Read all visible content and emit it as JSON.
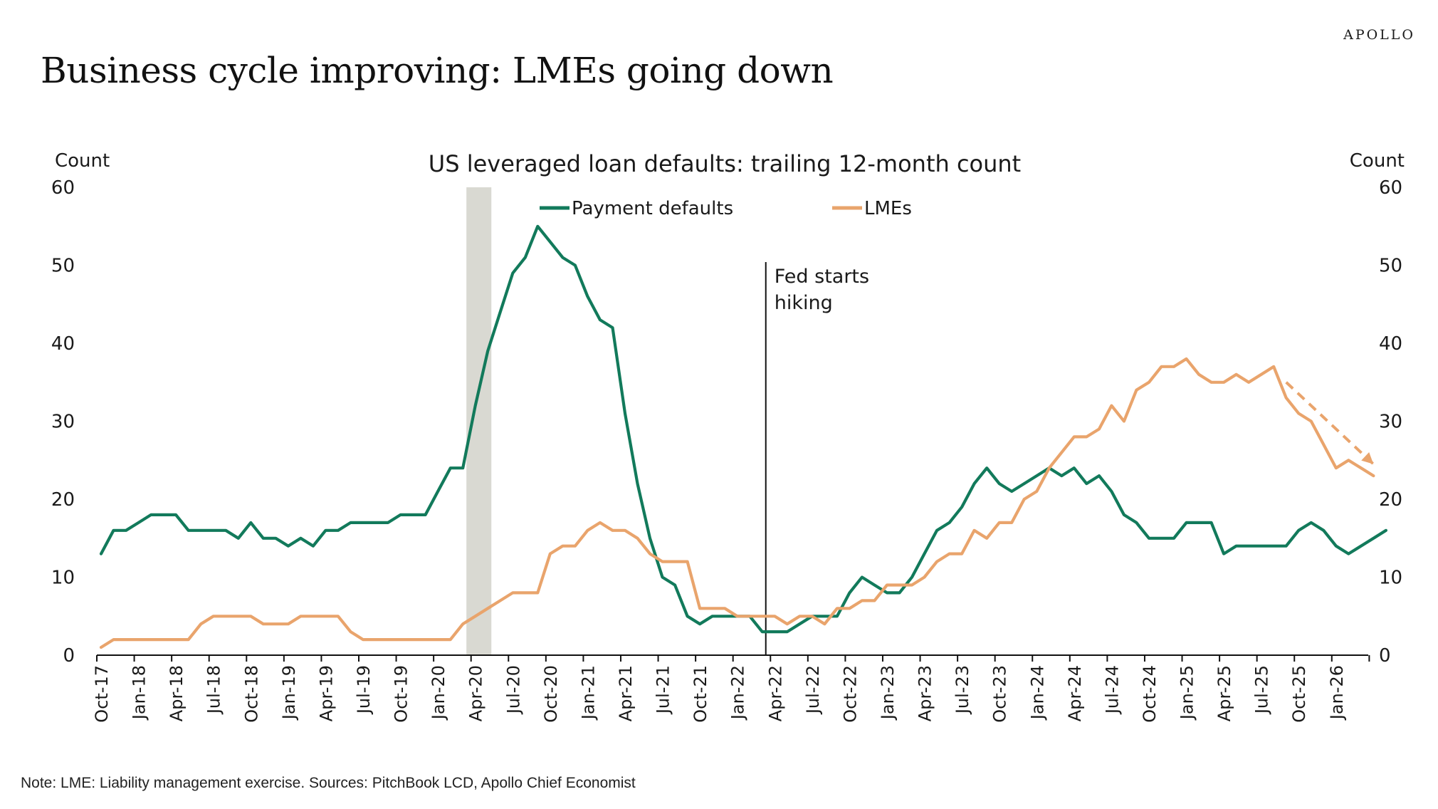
{
  "brand": "APOLLO",
  "title": "Business cycle improving: LMEs going down",
  "note": "Note: LME: Liability management exercise. Sources: PitchBook LCD, Apollo Chief Economist",
  "chart_data": {
    "type": "line",
    "title": "US leveraged loan defaults: trailing 12-month count",
    "ylabel_left": "Count",
    "ylabel_right": "Count",
    "ylim": [
      0,
      60
    ],
    "yticks": [
      0,
      10,
      20,
      30,
      40,
      50,
      60
    ],
    "x_start": "Oct-17",
    "x_labels": [
      "Oct-17",
      "Jan-18",
      "Apr-18",
      "Jul-18",
      "Oct-18",
      "Jan-19",
      "Apr-19",
      "Jul-19",
      "Oct-19",
      "Jan-20",
      "Apr-20",
      "Jul-20",
      "Oct-20",
      "Jan-21",
      "Apr-21",
      "Jul-21",
      "Oct-21",
      "Jan-22",
      "Apr-22",
      "Jul-22",
      "Oct-22",
      "Jan-23",
      "Apr-23",
      "Jul-23",
      "Oct-23",
      "Jan-24",
      "Apr-24",
      "Jul-24",
      "Oct-24",
      "Jan-25",
      "Apr-25",
      "Jul-25",
      "Oct-25",
      "Jan-26"
    ],
    "legend_position": "top-center",
    "recession_shading": {
      "start_month_index": 29,
      "end_month_index": 31
    },
    "annotation": {
      "month_index": 53,
      "text_lines": [
        "Fed starts",
        "hiking"
      ]
    },
    "trend_arrow": {
      "series": "LMEs",
      "from": {
        "month_index": 95,
        "value": 35
      },
      "to": {
        "month_index": 102,
        "value": 24.5
      }
    },
    "series": [
      {
        "name": "Payment defaults",
        "color": "#127a5b",
        "values": [
          13,
          16,
          16,
          17,
          18,
          18,
          18,
          16,
          16,
          16,
          16,
          15,
          17,
          15,
          15,
          14,
          15,
          14,
          16,
          16,
          17,
          17,
          17,
          17,
          18,
          18,
          18,
          21,
          24,
          24,
          32,
          39,
          44,
          49,
          51,
          55,
          53,
          51,
          50,
          46,
          43,
          42,
          31,
          22,
          15,
          10,
          9,
          5,
          4,
          5,
          5,
          5,
          5,
          3,
          3,
          3,
          4,
          5,
          5,
          5,
          8,
          10,
          9,
          8,
          8,
          10,
          13,
          16,
          17,
          19,
          22,
          24,
          22,
          21,
          22,
          23,
          24,
          23,
          24,
          22,
          23,
          21,
          18,
          17,
          15,
          15,
          15,
          17,
          17,
          17,
          13,
          14,
          14,
          14,
          14,
          14,
          16,
          17,
          16,
          14,
          13,
          14,
          15,
          16
        ]
      },
      {
        "name": "LMEs",
        "color": "#e9a46c",
        "values": [
          1,
          2,
          2,
          2,
          2,
          2,
          2,
          2,
          4,
          5,
          5,
          5,
          5,
          4,
          4,
          4,
          5,
          5,
          5,
          5,
          3,
          2,
          2,
          2,
          2,
          2,
          2,
          2,
          2,
          4,
          5,
          6,
          7,
          8,
          8,
          8,
          13,
          14,
          14,
          16,
          17,
          16,
          16,
          15,
          13,
          12,
          12,
          12,
          6,
          6,
          6,
          5,
          5,
          5,
          5,
          4,
          5,
          5,
          4,
          6,
          6,
          7,
          7,
          9,
          9,
          9,
          10,
          12,
          13,
          13,
          16,
          15,
          17,
          17,
          20,
          21,
          24,
          26,
          28,
          28,
          29,
          32,
          30,
          34,
          35,
          37,
          37,
          38,
          36,
          35,
          35,
          36,
          35,
          36,
          37,
          33,
          31,
          30,
          27,
          24,
          25,
          24,
          23
        ]
      }
    ]
  }
}
